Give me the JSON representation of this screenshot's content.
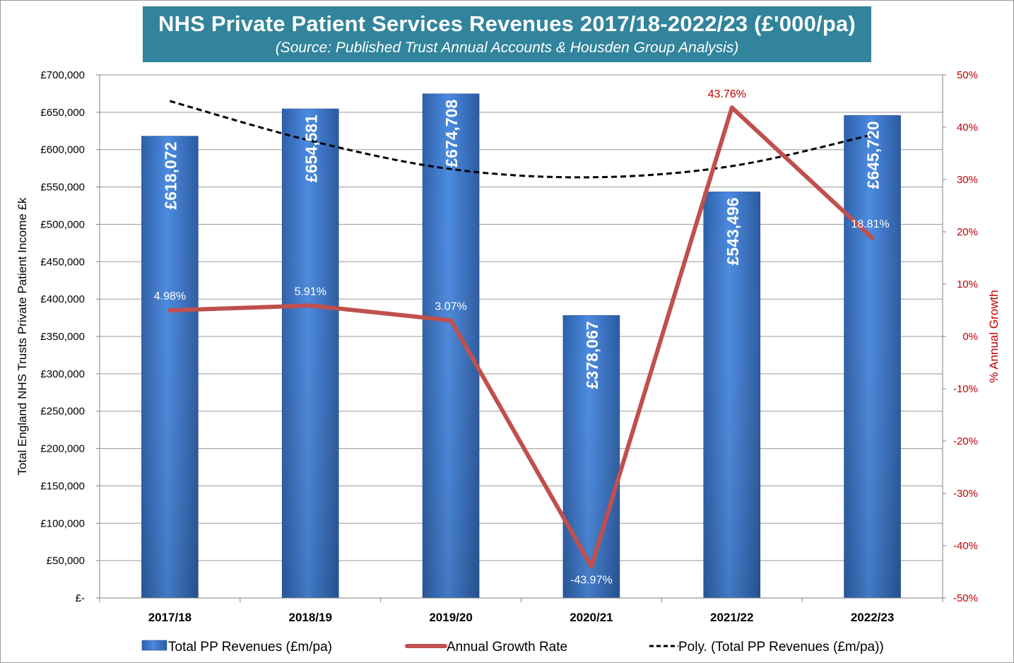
{
  "chart_data": {
    "type": "bar",
    "title": "NHS Private Patient Services Revenues 2017/18-2022/23 (£'000/pa)",
    "subtitle": "(Source: Published Trust Annual Accounts & Housden Group Analysis)",
    "categories": [
      "2017/18",
      "2018/19",
      "2019/20",
      "2020/21",
      "2021/22",
      "2022/23"
    ],
    "series": [
      {
        "name": "Total PP Revenues (£m/pa)",
        "type": "bar",
        "axis": "left",
        "color": "#3b7bd0",
        "values": [
          618072,
          654581,
          674708,
          378067,
          543496,
          645720
        ],
        "labels": [
          "£618,072",
          "£654,581",
          "£674,708",
          "£378,067",
          "£543,496",
          "£645,720"
        ]
      },
      {
        "name": "Annual Growth Rate",
        "type": "line",
        "axis": "right",
        "color": "#c0504d",
        "values": [
          4.98,
          5.91,
          3.07,
          -43.97,
          43.76,
          18.81
        ],
        "labels": [
          "4.98%",
          "5.91%",
          "3.07%",
          "-43.97%",
          "43.76%",
          "18.81%"
        ]
      },
      {
        "name": "Poly. (Total PP Revenues (£m/pa))",
        "type": "trendline",
        "axis": "left",
        "color": "#000000",
        "style": "dashed",
        "values": [
          665000,
          612000,
          574000,
          563000,
          578000,
          620000
        ]
      }
    ],
    "ylabel": "Total England NHS Trusts Private Patient Income £k",
    "y2label": "% Annual Growth",
    "ylim": [
      0,
      700000
    ],
    "y2lim": [
      -50,
      50
    ],
    "yticks": [
      "£-",
      "£50,000",
      "£100,000",
      "£150,000",
      "£200,000",
      "£250,000",
      "£300,000",
      "£350,000",
      "£400,000",
      "£450,000",
      "£500,000",
      "£550,000",
      "£600,000",
      "£650,000",
      "£700,000"
    ],
    "y2ticks": [
      "-50%",
      "-40%",
      "-30%",
      "-20%",
      "-10%",
      "0%",
      "10%",
      "20%",
      "30%",
      "40%",
      "50%"
    ],
    "grid": true,
    "legend": "bottom"
  }
}
